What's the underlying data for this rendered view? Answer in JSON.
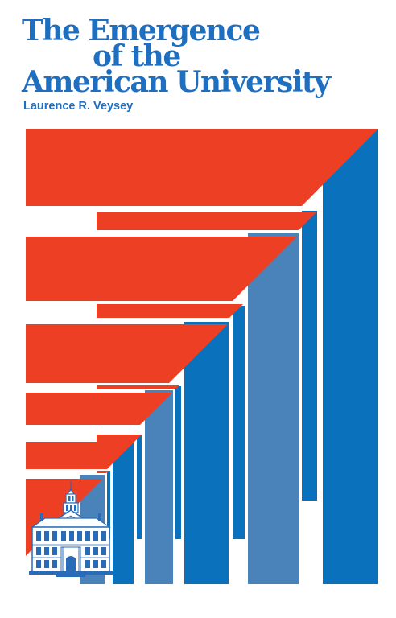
{
  "cover": {
    "title_line_1": "The Emergence",
    "title_line_2": "of the",
    "title_line_3": "American University",
    "author": "Laurence R. Veysey"
  },
  "colors": {
    "red": "#ec3f24",
    "blue": "#0a72bd",
    "steel_blue": "#4a83b9",
    "title_blue": "#1f6fc1",
    "background": "#ffffff"
  },
  "illustration": {
    "icon": "colonial-hall-building-icon"
  }
}
